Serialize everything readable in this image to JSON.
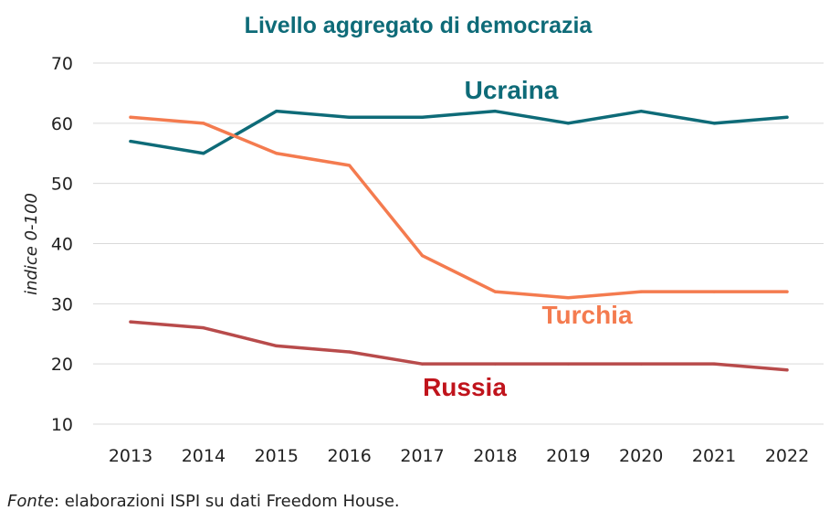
{
  "chart_data": {
    "type": "line",
    "title": "Livello aggregato di democrazia",
    "ylabel": "indice 0-100",
    "xlabel": "",
    "x": [
      "2013",
      "2014",
      "2015",
      "2016",
      "2017",
      "2018",
      "2019",
      "2020",
      "2021",
      "2022"
    ],
    "ylim": [
      10,
      70
    ],
    "yticks": [
      10,
      20,
      30,
      40,
      50,
      60,
      70
    ],
    "grid": true,
    "series": [
      {
        "name": "Ucraina",
        "color": "#0e6b78",
        "label_color": "#0e6b78",
        "values": [
          57,
          55,
          62,
          61,
          61,
          62,
          60,
          62,
          60,
          61
        ]
      },
      {
        "name": "Turchia",
        "color": "#f47b4f",
        "label_color": "#f47b4f",
        "values": [
          61,
          60,
          55,
          53,
          38,
          32,
          31,
          32,
          32,
          32
        ]
      },
      {
        "name": "Russia",
        "color": "#b84b4b",
        "label_color": "#c0141c",
        "values": [
          27,
          26,
          23,
          22,
          20,
          20,
          20,
          20,
          20,
          19
        ]
      }
    ]
  },
  "source": {
    "prefix": "Fonte",
    "text": ": elaborazioni ISPI su dati Freedom House."
  }
}
